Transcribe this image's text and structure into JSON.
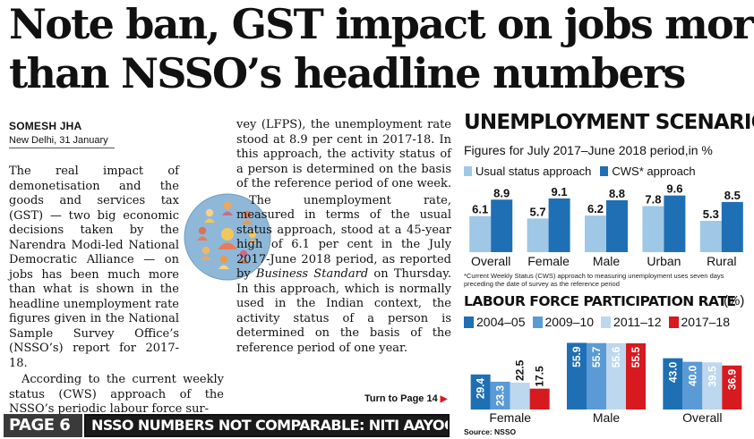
{
  "article": {
    "headline_line1": "Note ban, GST impact on jobs more",
    "headline_line2": "than NSSO’s headline numbers",
    "byline": "SOMESH JHA",
    "dateline": "New Delhi, 31 January",
    "col1_p1": "The real impact of demonetisation and the goods and services tax (GST) — two big economic decisions taken by the Narendra Modi-led National Democratic Alliance — on jobs has been much more than what is shown in the headline unemployment rate figures given in the National Sample Survey Office’s (NSSO’s) report for 2017-18.",
    "col1_p2": "According to the current weekly status (CWS) approach of the NSSO’s periodic labour force sur-",
    "col2_p1": "vey (LFPS), the unemployment rate stood at 8.9 per cent in 2017-18. In this approach, the activity status of a person is determined on the basis of the reference period of one week.",
    "col2_p2": "The unemployment rate, measured in terms of the usual status approach, stood at a 45-year high of 6.1 per cent in the July 2017-June 2018 period, as reported by ",
    "col2_p2_em": "Business Standard",
    "col2_p2_tail": " on Thursday. In this approach, which is normally used in the Indian context, the activity status of a person is determined on the basis of the reference period of one year.",
    "turn_to": "Turn to Page 14"
  },
  "page_bar": {
    "page_label": "PAGE 6",
    "story": "NSSO NUMBERS NOT COMPARABLE: NITI AAYOG VC"
  },
  "colors": {
    "light_blue": "#9fc8e6",
    "dark_blue": "#1f6fb5",
    "mid_blue": "#5a9bd5",
    "pale_blue": "#bcd7ee",
    "red": "#d71920"
  },
  "chart_data": [
    {
      "type": "bar",
      "title": "UNEMPLOYMENT SCENARIO",
      "subtitle": "Figures for July 2017–June 2018 period,in %",
      "categories": [
        "Overall",
        "Female",
        "Male",
        "Urban",
        "Rural"
      ],
      "series": [
        {
          "name": "Usual status approach",
          "values": [
            6.1,
            5.7,
            6.2,
            7.8,
            5.3
          ]
        },
        {
          "name": "CWS* approach",
          "values": [
            8.9,
            9.1,
            8.8,
            9.6,
            8.5
          ]
        }
      ],
      "ylim": [
        0,
        10
      ],
      "legend": "top",
      "footnote": "*Current Weekly Status (CWS) approach to measuring unemployment uses seven days preceding the date of survey as the reference period"
    },
    {
      "type": "bar",
      "title": "LABOUR FORCE PARTICIPATION RATE",
      "unit": "(%)",
      "categories": [
        "Female",
        "Male",
        "Overall"
      ],
      "series": [
        {
          "name": "2004–05",
          "values": [
            29.4,
            55.9,
            43.0
          ]
        },
        {
          "name": "2009–10",
          "values": [
            23.3,
            55.7,
            40.0
          ]
        },
        {
          "name": "2011–12",
          "values": [
            22.5,
            55.6,
            39.5
          ]
        },
        {
          "name": "2017–18",
          "values": [
            17.5,
            55.5,
            36.9
          ]
        }
      ],
      "ylim": [
        0,
        60
      ],
      "legend": "top",
      "source": "Source: NSSO"
    }
  ]
}
